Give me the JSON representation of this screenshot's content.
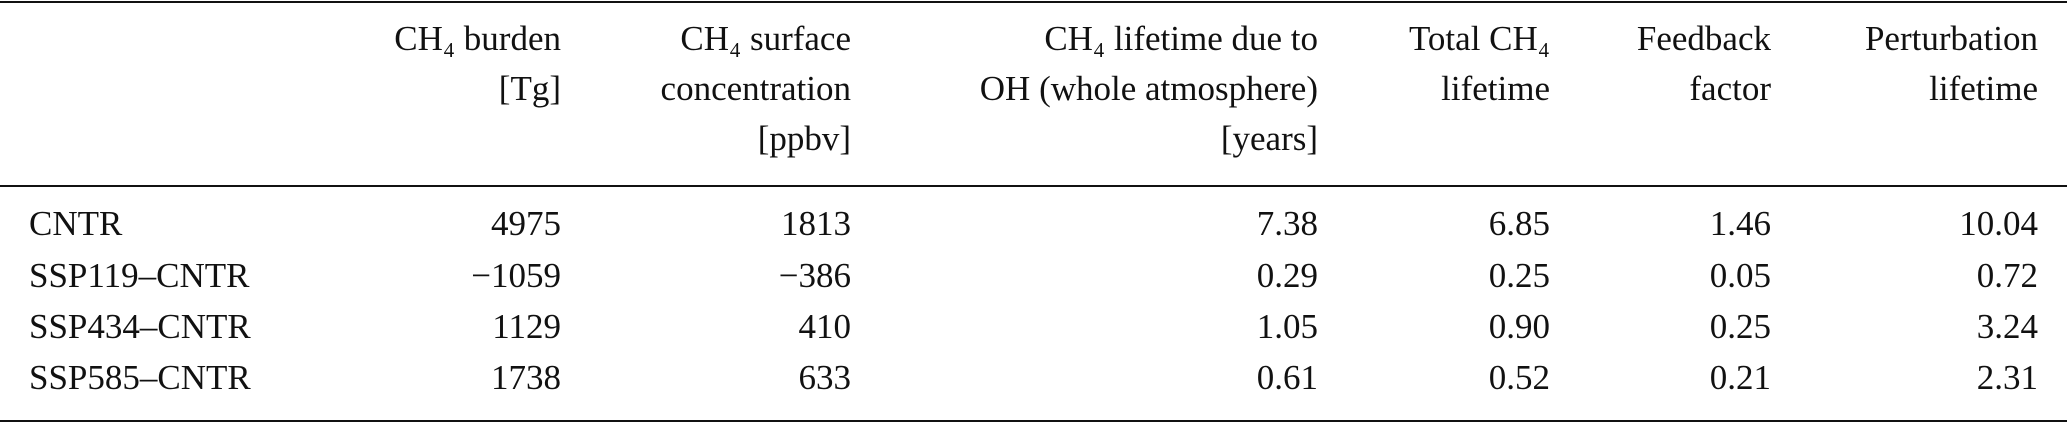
{
  "table": {
    "header": [
      [],
      [
        "CH₄ burden",
        "[Tg]"
      ],
      [
        "CH₄ surface",
        "concentration",
        "[ppbv]"
      ],
      [
        "CH₄ lifetime due to",
        "OH (whole atmosphere)",
        "[years]"
      ],
      [
        "Total CH₄",
        "lifetime"
      ],
      [
        "Feedback",
        "factor"
      ],
      [
        "Perturbation",
        "lifetime"
      ]
    ],
    "rows": [
      [
        "CNTR",
        "4975",
        "1813",
        "7.38",
        "6.85",
        "1.46",
        "10.04"
      ],
      [
        "SSP119–CNTR",
        "−1059",
        "−386",
        "0.29",
        "0.25",
        "0.05",
        "0.72"
      ],
      [
        "SSP434–CNTR",
        "1129",
        "410",
        "1.05",
        "0.90",
        "0.25",
        "3.24"
      ],
      [
        "SSP585–CNTR",
        "1738",
        "633",
        "0.61",
        "0.52",
        "0.21",
        "2.31"
      ]
    ]
  }
}
